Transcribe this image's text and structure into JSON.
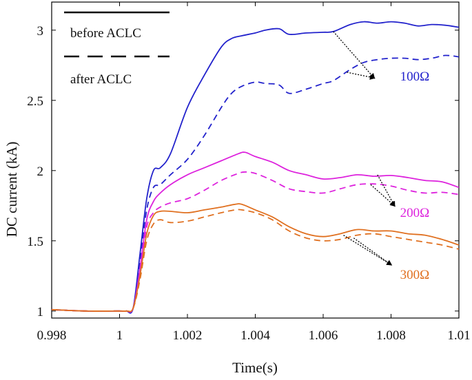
{
  "chart_data": {
    "type": "line",
    "xlabel": "Time(s)",
    "ylabel": "DC current (kA)",
    "xlim": [
      0.998,
      1.01
    ],
    "ylim": [
      0.95,
      3.2
    ],
    "x_ticks": [
      0.998,
      1,
      1.002,
      1.004,
      1.006,
      1.008,
      1.01
    ],
    "x_tick_labels": [
      "0.998",
      "1",
      "1.002",
      "1.004",
      "1.006",
      "1.008",
      "1.01"
    ],
    "y_ticks": [
      1,
      1.5,
      2,
      2.5,
      3
    ],
    "y_tick_labels": [
      "1",
      "1.5",
      "2",
      "2.5",
      "3"
    ],
    "grid": false,
    "legend": {
      "placement": "top-left",
      "entries": [
        {
          "label": "before ACLC",
          "style": "solid"
        },
        {
          "label": "after ACLC",
          "style": "dashed"
        }
      ]
    },
    "series": [
      {
        "name": "100Ω before ACLC",
        "group": "100Ω",
        "style": "solid",
        "color": "#2222cc",
        "x": [
          0.998,
          0.999,
          1.0,
          1.0002,
          1.0004,
          1.0006,
          1.0008,
          1.001,
          1.0012,
          1.0015,
          1.002,
          1.0025,
          1.003,
          1.0033,
          1.0036,
          1.004,
          1.0043,
          1.0047,
          1.005,
          1.0055,
          1.006,
          1.0063,
          1.0068,
          1.0072,
          1.0076,
          1.008,
          1.0084,
          1.0088,
          1.0092,
          1.0096,
          1.01
        ],
        "y": [
          1.01,
          1.0,
          1.0,
          1.0,
          1.02,
          1.4,
          1.8,
          2.0,
          2.02,
          2.12,
          2.45,
          2.68,
          2.88,
          2.94,
          2.96,
          2.98,
          3.0,
          3.01,
          2.97,
          2.98,
          2.985,
          2.99,
          3.04,
          3.06,
          3.05,
          3.06,
          3.05,
          3.03,
          3.04,
          3.035,
          3.02
        ]
      },
      {
        "name": "100Ω after ACLC",
        "group": "100Ω",
        "style": "dashed",
        "color": "#2222cc",
        "x": [
          0.998,
          0.999,
          1.0,
          1.0002,
          1.0004,
          1.0006,
          1.0008,
          1.001,
          1.0012,
          1.0015,
          1.002,
          1.0025,
          1.003,
          1.0033,
          1.0036,
          1.004,
          1.0043,
          1.0047,
          1.005,
          1.0055,
          1.006,
          1.0063,
          1.0068,
          1.0072,
          1.0076,
          1.008,
          1.0084,
          1.0088,
          1.0092,
          1.0096,
          1.01
        ],
        "y": [
          1.01,
          1.0,
          1.0,
          1.0,
          1.02,
          1.35,
          1.72,
          1.88,
          1.9,
          1.97,
          2.08,
          2.25,
          2.45,
          2.55,
          2.6,
          2.63,
          2.62,
          2.61,
          2.55,
          2.58,
          2.62,
          2.64,
          2.72,
          2.77,
          2.79,
          2.8,
          2.8,
          2.79,
          2.8,
          2.82,
          2.81
        ]
      },
      {
        "name": "200Ω before ACLC",
        "group": "200Ω",
        "style": "solid",
        "color": "#dd22dd",
        "x": [
          0.998,
          0.999,
          1.0,
          1.0002,
          1.0004,
          1.0006,
          1.0008,
          1.001,
          1.0012,
          1.0015,
          1.002,
          1.0025,
          1.003,
          1.0035,
          1.0037,
          1.004,
          1.0045,
          1.005,
          1.0055,
          1.006,
          1.0065,
          1.007,
          1.0075,
          1.008,
          1.0085,
          1.009,
          1.0095,
          1.01
        ],
        "y": [
          1.01,
          1.0,
          1.0,
          1.0,
          1.02,
          1.3,
          1.65,
          1.78,
          1.84,
          1.9,
          1.97,
          2.02,
          2.07,
          2.12,
          2.13,
          2.1,
          2.06,
          2.0,
          1.97,
          1.94,
          1.95,
          1.97,
          1.96,
          1.965,
          1.95,
          1.93,
          1.92,
          1.88
        ]
      },
      {
        "name": "200Ω after ACLC",
        "group": "200Ω",
        "style": "dashed",
        "color": "#dd22dd",
        "x": [
          0.998,
          0.999,
          1.0,
          1.0002,
          1.0004,
          1.0006,
          1.0008,
          1.001,
          1.0012,
          1.0015,
          1.002,
          1.0025,
          1.003,
          1.0035,
          1.0037,
          1.004,
          1.0045,
          1.005,
          1.0055,
          1.006,
          1.0065,
          1.007,
          1.0075,
          1.008,
          1.0085,
          1.009,
          1.0095,
          1.01
        ],
        "y": [
          1.01,
          1.0,
          1.0,
          1.0,
          1.02,
          1.28,
          1.6,
          1.7,
          1.74,
          1.77,
          1.8,
          1.86,
          1.93,
          1.98,
          1.99,
          1.98,
          1.93,
          1.87,
          1.85,
          1.84,
          1.87,
          1.9,
          1.905,
          1.89,
          1.86,
          1.84,
          1.845,
          1.83
        ]
      },
      {
        "name": "300Ω before ACLC",
        "group": "300Ω",
        "style": "solid",
        "color": "#e07020",
        "x": [
          0.998,
          0.999,
          1.0,
          1.0002,
          1.0004,
          1.0006,
          1.0008,
          1.001,
          1.0012,
          1.0015,
          1.002,
          1.0025,
          1.003,
          1.0034,
          1.0036,
          1.004,
          1.0045,
          1.005,
          1.0055,
          1.006,
          1.0065,
          1.007,
          1.0075,
          1.008,
          1.0085,
          1.009,
          1.0095,
          1.01
        ],
        "y": [
          1.01,
          1.0,
          1.0,
          1.0,
          1.02,
          1.25,
          1.55,
          1.68,
          1.71,
          1.71,
          1.7,
          1.72,
          1.74,
          1.76,
          1.76,
          1.72,
          1.67,
          1.6,
          1.55,
          1.53,
          1.55,
          1.58,
          1.57,
          1.57,
          1.55,
          1.54,
          1.51,
          1.47
        ]
      },
      {
        "name": "300Ω after ACLC",
        "group": "300Ω",
        "style": "dashed",
        "color": "#e07020",
        "x": [
          0.998,
          0.999,
          1.0,
          1.0002,
          1.0004,
          1.0006,
          1.0008,
          1.001,
          1.0012,
          1.0015,
          1.002,
          1.0025,
          1.003,
          1.0034,
          1.0036,
          1.004,
          1.0045,
          1.005,
          1.0055,
          1.006,
          1.0065,
          1.007,
          1.0075,
          1.008,
          1.0085,
          1.009,
          1.0095,
          1.01
        ],
        "y": [
          1.01,
          1.0,
          1.0,
          1.0,
          1.02,
          1.22,
          1.5,
          1.62,
          1.65,
          1.63,
          1.64,
          1.67,
          1.7,
          1.72,
          1.72,
          1.7,
          1.65,
          1.57,
          1.52,
          1.5,
          1.51,
          1.54,
          1.55,
          1.53,
          1.51,
          1.49,
          1.47,
          1.44
        ]
      }
    ],
    "annotations": [
      {
        "label": "100Ω",
        "color": "#2222cc",
        "x": 1.0087,
        "y": 2.64,
        "arrows": [
          {
            "from": [
              1.0063,
              2.99
            ],
            "to": [
              1.0075,
              2.66
            ]
          },
          {
            "from": [
              1.0067,
              2.7
            ],
            "to": [
              1.0075,
              2.66
            ]
          }
        ]
      },
      {
        "label": "200Ω",
        "color": "#dd22dd",
        "x": 1.0087,
        "y": 1.67,
        "arrows": [
          {
            "from": [
              1.0076,
              1.97
            ],
            "to": [
              1.0081,
              1.75
            ]
          },
          {
            "from": [
              1.0074,
              1.9
            ],
            "to": [
              1.0081,
              1.75
            ]
          }
        ]
      },
      {
        "label": "300Ω",
        "color": "#e07020",
        "x": 1.0087,
        "y": 1.23,
        "arrows": [
          {
            "from": [
              1.0066,
              1.54
            ],
            "to": [
              1.008,
              1.33
            ]
          },
          {
            "from": [
              1.0069,
              1.52
            ],
            "to": [
              1.008,
              1.33
            ]
          }
        ]
      }
    ]
  }
}
